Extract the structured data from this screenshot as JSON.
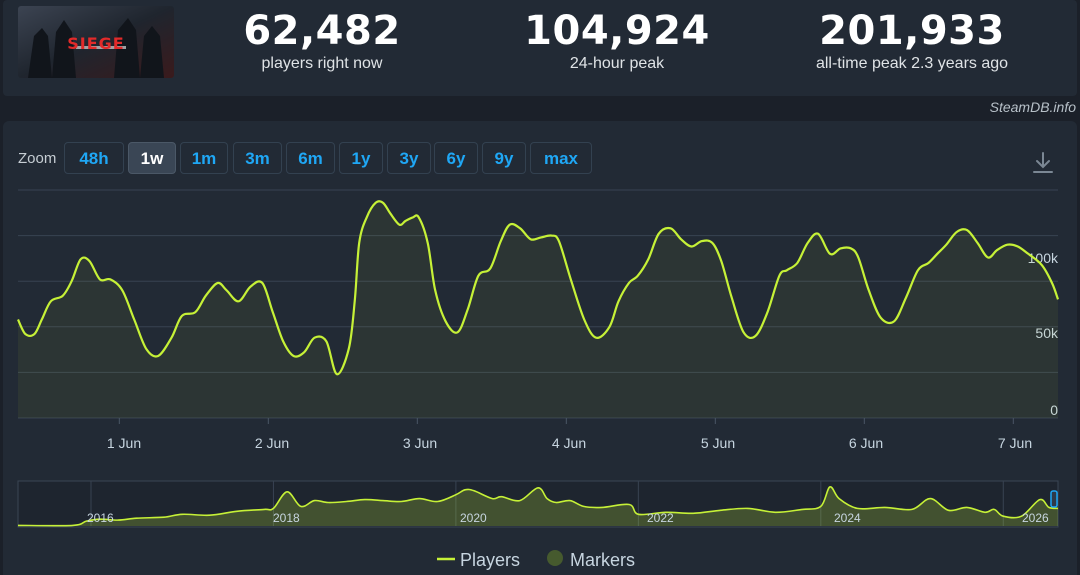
{
  "colors": {
    "series": "#c6f137",
    "marker": "#465a2e",
    "accent": "#1fa7f5",
    "grid": "#384352"
  },
  "stats": [
    {
      "value": "62,482",
      "label": "players right now"
    },
    {
      "value": "104,924",
      "label": "24-hour peak"
    },
    {
      "value": "201,933",
      "label": "all-time peak 2.3 years ago"
    }
  ],
  "thumbnail": {
    "name": "game-thumbnail",
    "caption": "SIEGE"
  },
  "watermark": "SteamDB.info",
  "zoom": {
    "label": "Zoom",
    "buttons": [
      "48h",
      "1w",
      "1m",
      "3m",
      "6m",
      "1y",
      "3y",
      "6y",
      "9y",
      "max"
    ],
    "active": "1w"
  },
  "icons": {
    "download": "download-icon"
  },
  "legend": [
    {
      "label": "Players",
      "symbol": "line"
    },
    {
      "label": "Markers",
      "symbol": "circle"
    }
  ],
  "chart_data": [
    {
      "type": "line",
      "title": "",
      "xlabel": "",
      "ylabel": "",
      "ylim": [
        0,
        125000
      ],
      "x_range_days": [
        0.32,
        7.3
      ],
      "y_ticks": [
        0,
        50000,
        100000
      ],
      "y_tick_labels": [
        "0",
        "50k",
        "100k"
      ],
      "x_ticks": [
        1,
        2,
        3,
        4,
        5,
        6,
        7
      ],
      "x_tick_labels": [
        "1 Jun",
        "2 Jun",
        "3 Jun",
        "4 Jun",
        "5 Jun",
        "6 Jun",
        "7 Jun"
      ],
      "grid": true,
      "series": [
        {
          "name": "Players",
          "x": [
            0.32,
            0.37,
            0.43,
            0.48,
            0.54,
            0.62,
            0.68,
            0.74,
            0.8,
            0.87,
            0.94,
            1.02,
            1.1,
            1.18,
            1.26,
            1.35,
            1.42,
            1.51,
            1.58,
            1.66,
            1.72,
            1.8,
            1.88,
            1.96,
            2.03,
            2.1,
            2.17,
            2.24,
            2.31,
            2.39,
            2.46,
            2.54,
            2.58,
            2.61,
            2.66,
            2.72,
            2.77,
            2.82,
            2.88,
            2.92,
            2.97,
            3.01,
            3.07,
            3.12,
            3.19,
            3.27,
            3.34,
            3.41,
            3.49,
            3.56,
            3.62,
            3.69,
            3.76,
            3.83,
            3.9,
            3.95,
            4.03,
            4.12,
            4.2,
            4.29,
            4.35,
            4.42,
            4.48,
            4.55,
            4.62,
            4.7,
            4.77,
            4.84,
            4.91,
            4.98,
            5.04,
            5.11,
            5.19,
            5.27,
            5.35,
            5.43,
            5.48,
            5.55,
            5.62,
            5.69,
            5.77,
            5.84,
            5.91,
            5.96,
            6.03,
            6.11,
            6.2,
            6.28,
            6.36,
            6.43,
            6.49,
            6.55,
            6.62,
            6.69,
            6.76,
            6.83,
            6.89,
            6.96,
            7.03,
            7.1,
            7.19,
            7.26,
            7.3
          ],
          "y": [
            54000,
            46000,
            46000,
            54000,
            64000,
            67000,
            75000,
            87000,
            86000,
            76000,
            76000,
            70000,
            54000,
            38000,
            34000,
            44000,
            56000,
            58000,
            67000,
            74000,
            70000,
            64000,
            72000,
            74000,
            58000,
            42000,
            34000,
            36000,
            44000,
            42000,
            24000,
            38000,
            64000,
            96000,
            110000,
            118000,
            118000,
            112000,
            106000,
            108000,
            110000,
            110000,
            96000,
            70000,
            53000,
            47000,
            60000,
            78000,
            82000,
            97000,
            106000,
            104000,
            98000,
            99000,
            100000,
            97000,
            76000,
            54000,
            44000,
            50000,
            64000,
            74000,
            78000,
            87000,
            101000,
            104000,
            98000,
            94000,
            97000,
            96000,
            86000,
            66000,
            47000,
            45000,
            58000,
            78000,
            81000,
            85000,
            96000,
            101000,
            90000,
            93000,
            93000,
            88000,
            70000,
            55000,
            53000,
            66000,
            81000,
            85000,
            90000,
            95000,
            102000,
            103000,
            96000,
            88000,
            92000,
            95000,
            94000,
            90000,
            84000,
            74000,
            65000
          ]
        }
      ]
    },
    {
      "type": "area",
      "title": "",
      "xlabel": "",
      "ylabel": "",
      "x_range": [
        2015.2,
        2026.6
      ],
      "ylim": [
        0,
        230000
      ],
      "x_ticks": [
        2016,
        2018,
        2020,
        2022,
        2024,
        2026
      ],
      "x_tick_labels": [
        "2016",
        "2018",
        "2020",
        "2022",
        "2024",
        "2026"
      ],
      "series": [
        {
          "name": "Players",
          "x": [
            2015.2,
            2015.8,
            2015.95,
            2016.1,
            2016.3,
            2016.5,
            2016.8,
            2017.0,
            2017.3,
            2017.6,
            2017.9,
            2018.0,
            2018.15,
            2018.3,
            2018.45,
            2018.6,
            2018.8,
            2019.0,
            2019.2,
            2019.4,
            2019.6,
            2019.8,
            2020.0,
            2020.1,
            2020.2,
            2020.4,
            2020.5,
            2020.7,
            2020.9,
            2021.0,
            2021.1,
            2021.25,
            2021.4,
            2021.6,
            2021.9,
            2022.0,
            2022.3,
            2022.6,
            2022.9,
            2023.2,
            2023.5,
            2023.8,
            2024.0,
            2024.1,
            2024.2,
            2024.4,
            2024.7,
            2025.0,
            2025.2,
            2025.4,
            2025.6,
            2025.8,
            2025.9,
            2026.0,
            2026.2,
            2026.4,
            2026.5,
            2026.6
          ],
          "y": [
            3000,
            3000,
            25000,
            35000,
            30000,
            40000,
            45000,
            60000,
            55000,
            75000,
            85000,
            90000,
            175000,
            100000,
            130000,
            120000,
            125000,
            135000,
            130000,
            125000,
            140000,
            125000,
            160000,
            185000,
            180000,
            140000,
            150000,
            130000,
            195000,
            140000,
            120000,
            130000,
            100000,
            95000,
            110000,
            60000,
            70000,
            65000,
            80000,
            90000,
            70000,
            85000,
            100000,
            200000,
            140000,
            90000,
            95000,
            85000,
            140000,
            80000,
            95000,
            70000,
            85000,
            50000,
            50000,
            135000,
            95000,
            90000
          ]
        }
      ]
    }
  ]
}
